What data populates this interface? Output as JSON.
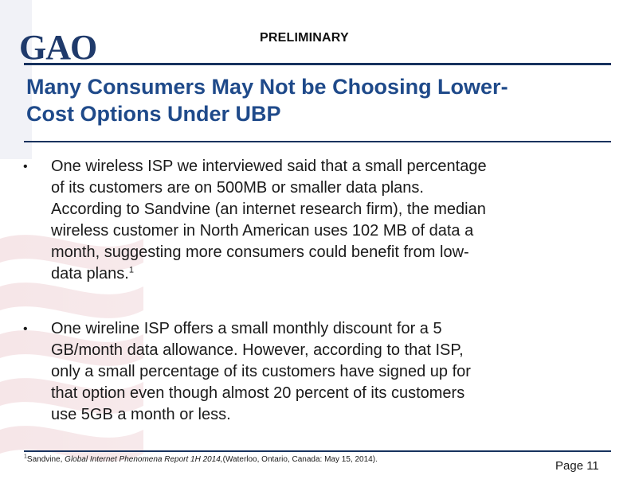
{
  "header": {
    "logo_text": "GAO",
    "label": "PRELIMINARY"
  },
  "title": {
    "line1": "Many Consumers May Not be Choosing Lower-",
    "line2": "Cost Options Under UBP"
  },
  "bullets": [
    {
      "marker": "•",
      "lines": [
        "One wireless ISP we interviewed said that a small percentage",
        "of its customers are on 500MB or smaller data plans.",
        "According to Sandvine (an internet research firm), the median",
        "wireless customer in North American uses 102 MB of data a",
        "month, suggesting more consumers could benefit from low-",
        "data plans."
      ],
      "footnote_ref": "1"
    },
    {
      "marker": "•",
      "lines": [
        "One wireline ISP offers a small monthly discount for a 5",
        "GB/month data allowance. However, according to that ISP,",
        "only a small percentage of its customers have signed up for",
        "that option even though almost 20 percent of its customers",
        "use 5GB a month or less."
      ]
    }
  ],
  "footnote": {
    "number": "1",
    "prefix": "Sandvine, ",
    "italic": "Global Internet Phenomena Report 1H 2014,",
    "suffix": "(Waterloo, Ontario, Canada: May 15, 2014)."
  },
  "page": {
    "label": "Page 11"
  },
  "colors": {
    "rule": "#17325e",
    "title": "#1f4a8a",
    "logo": "#1f3a6b"
  }
}
